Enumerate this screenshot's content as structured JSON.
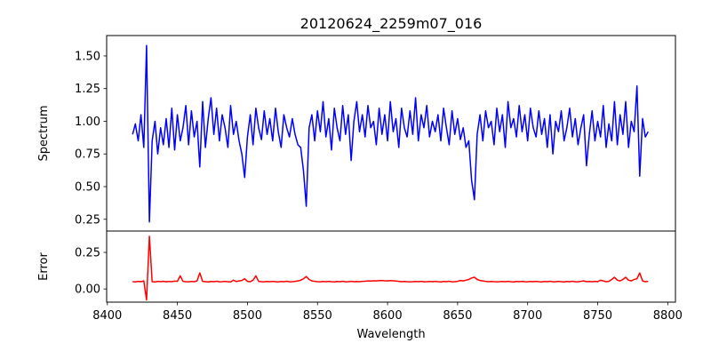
{
  "chart_data": {
    "type": "line",
    "title": "20120624_2259m07_016",
    "xlabel": "Wavelength",
    "x_start": 8418,
    "x_step": 2,
    "xlim": [
      8399.5,
      8805.5
    ],
    "xticks": [
      8400,
      8450,
      8500,
      8550,
      8600,
      8650,
      8700,
      8750,
      8800
    ],
    "panels": [
      {
        "name": "spectrum",
        "ylabel": "Spectrum",
        "color": "#0000ff",
        "ylim": [
          0.16,
          1.656
        ],
        "yticks": [
          0.25,
          0.5,
          0.75,
          1.0,
          1.25,
          1.5
        ],
        "ytick_labels": [
          "0.25",
          "0.50",
          "0.75",
          "1.00",
          "1.25",
          "1.50"
        ],
        "values": [
          0.9,
          0.98,
          0.85,
          1.05,
          0.8,
          1.58,
          0.23,
          0.85,
          1.0,
          0.75,
          0.95,
          0.82,
          1.02,
          0.8,
          1.1,
          0.78,
          1.05,
          0.85,
          0.95,
          1.12,
          0.82,
          1.08,
          0.88,
          1.0,
          0.65,
          1.15,
          0.8,
          1.02,
          1.18,
          0.9,
          1.1,
          0.85,
          1.05,
          0.95,
          0.8,
          1.12,
          0.9,
          1.0,
          0.85,
          0.75,
          0.57,
          0.88,
          1.05,
          0.82,
          1.1,
          0.95,
          0.86,
          1.08,
          0.9,
          1.02,
          0.85,
          1.1,
          0.92,
          0.8,
          1.05,
          0.95,
          0.88,
          1.02,
          0.9,
          0.82,
          0.8,
          0.62,
          0.35,
          0.95,
          1.05,
          0.85,
          1.08,
          0.92,
          1.15,
          0.88,
          1.02,
          0.78,
          1.1,
          0.95,
          0.85,
          1.12,
          0.9,
          1.05,
          0.7,
          1.0,
          1.15,
          0.92,
          1.05,
          0.88,
          1.12,
          0.95,
          1.0,
          0.82,
          1.1,
          0.9,
          1.05,
          0.85,
          1.15,
          0.92,
          1.02,
          0.8,
          1.1,
          0.95,
          0.88,
          1.08,
          0.9,
          1.18,
          0.85,
          1.05,
          0.95,
          1.12,
          0.88,
          1.0,
          0.92,
          1.05,
          0.85,
          1.1,
          0.95,
          0.82,
          1.08,
          0.9,
          1.02,
          0.86,
          0.95,
          0.8,
          0.85,
          0.55,
          0.4,
          0.9,
          1.05,
          0.85,
          1.08,
          0.95,
          1.0,
          0.82,
          1.1,
          0.92,
          1.05,
          0.8,
          1.15,
          0.95,
          1.02,
          0.88,
          1.12,
          0.92,
          1.05,
          0.85,
          1.1,
          0.95,
          0.88,
          1.08,
          0.9,
          1.02,
          0.8,
          1.05,
          0.75,
          1.0,
          0.92,
          1.08,
          0.85,
          0.95,
          1.1,
          0.88,
          1.02,
          0.82,
          0.95,
          1.05,
          0.66,
          0.9,
          1.08,
          0.85,
          1.0,
          0.88,
          1.12,
          0.8,
          0.98,
          0.85,
          1.15,
          0.82,
          1.05,
          0.9,
          1.15,
          0.8,
          1.0,
          0.92,
          1.27,
          0.58,
          1.02,
          0.88,
          0.92
        ]
      },
      {
        "name": "error",
        "ylabel": "Error",
        "color": "#ff0000",
        "ylim": [
          -0.09,
          0.396
        ],
        "yticks": [
          0.0,
          0.25
        ],
        "ytick_labels": [
          "0.00",
          "0.25"
        ],
        "values": [
          0.05,
          0.048,
          0.052,
          0.05,
          0.055,
          -0.075,
          0.36,
          0.05,
          0.048,
          0.052,
          0.05,
          0.053,
          0.049,
          0.051,
          0.05,
          0.054,
          0.052,
          0.09,
          0.052,
          0.05,
          0.049,
          0.051,
          0.05,
          0.055,
          0.11,
          0.052,
          0.05,
          0.048,
          0.051,
          0.05,
          0.053,
          0.049,
          0.05,
          0.052,
          0.05,
          0.048,
          0.06,
          0.051,
          0.055,
          0.058,
          0.07,
          0.052,
          0.05,
          0.06,
          0.09,
          0.052,
          0.05,
          0.049,
          0.051,
          0.05,
          0.052,
          0.05,
          0.048,
          0.051,
          0.05,
          0.053,
          0.049,
          0.05,
          0.052,
          0.055,
          0.06,
          0.07,
          0.085,
          0.065,
          0.055,
          0.052,
          0.05,
          0.049,
          0.051,
          0.05,
          0.052,
          0.05,
          0.048,
          0.051,
          0.05,
          0.053,
          0.049,
          0.05,
          0.052,
          0.05,
          0.051,
          0.05,
          0.052,
          0.053,
          0.055,
          0.054,
          0.056,
          0.055,
          0.057,
          0.058,
          0.056,
          0.055,
          0.057,
          0.056,
          0.054,
          0.052,
          0.05,
          0.051,
          0.05,
          0.049,
          0.05,
          0.051,
          0.05,
          0.052,
          0.049,
          0.05,
          0.051,
          0.05,
          0.052,
          0.05,
          0.048,
          0.051,
          0.05,
          0.053,
          0.049,
          0.05,
          0.052,
          0.058,
          0.055,
          0.06,
          0.065,
          0.075,
          0.08,
          0.065,
          0.058,
          0.055,
          0.052,
          0.05,
          0.051,
          0.05,
          0.049,
          0.05,
          0.051,
          0.05,
          0.052,
          0.05,
          0.048,
          0.051,
          0.05,
          0.052,
          0.05,
          0.049,
          0.051,
          0.05,
          0.052,
          0.05,
          0.048,
          0.051,
          0.05,
          0.053,
          0.049,
          0.05,
          0.052,
          0.05,
          0.048,
          0.051,
          0.05,
          0.053,
          0.049,
          0.05,
          0.052,
          0.055,
          0.05,
          0.051,
          0.05,
          0.052,
          0.05,
          0.06,
          0.055,
          0.05,
          0.052,
          0.065,
          0.08,
          0.06,
          0.055,
          0.065,
          0.08,
          0.06,
          0.055,
          0.065,
          0.07,
          0.11,
          0.055,
          0.05,
          0.052
        ]
      }
    ]
  }
}
